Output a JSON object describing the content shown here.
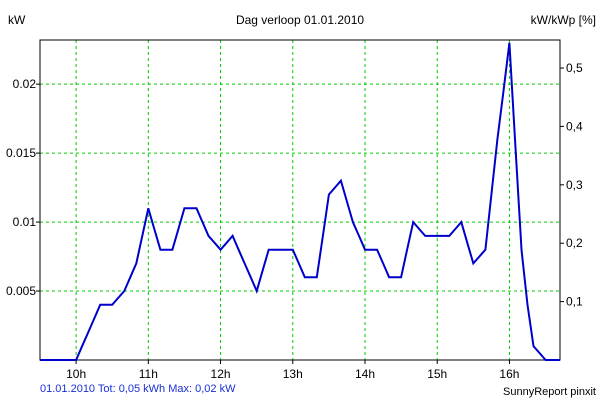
{
  "chart_data": {
    "type": "line",
    "title": "Dag  verloop 01.01.2010",
    "ylabel_left": "kW",
    "ylabel_right": "kW/kWp [%]",
    "x_ticks": [
      {
        "value": 10,
        "label": "10h"
      },
      {
        "value": 11,
        "label": "11h"
      },
      {
        "value": 12,
        "label": "12h"
      },
      {
        "value": 13,
        "label": "13h"
      },
      {
        "value": 14,
        "label": "14h"
      },
      {
        "value": 15,
        "label": "15h"
      },
      {
        "value": 16,
        "label": "16h"
      }
    ],
    "y_ticks_left": [
      {
        "value": 0.005,
        "label": "0.005"
      },
      {
        "value": 0.01,
        "label": "0.01"
      },
      {
        "value": 0.015,
        "label": "0.015"
      },
      {
        "value": 0.02,
        "label": "0.02"
      }
    ],
    "y_ticks_right": [
      {
        "value": 0.1,
        "label": "0,1"
      },
      {
        "value": 0.2,
        "label": "0,2"
      },
      {
        "value": 0.3,
        "label": "0,3"
      },
      {
        "value": 0.4,
        "label": "0,4"
      },
      {
        "value": 0.5,
        "label": "0,5"
      }
    ],
    "xlim": [
      9.5,
      16.7
    ],
    "ylim_left": [
      0,
      0.0232
    ],
    "ylim_right": [
      0,
      0.548
    ],
    "grid": true,
    "line_color": "#0000cc",
    "grid_color": "#00cc00",
    "series": [
      {
        "x": [
          9.5,
          10.0,
          10.083,
          10.167,
          10.25,
          10.333,
          10.417,
          10.5,
          10.583,
          10.667,
          10.75,
          10.833,
          10.917,
          11.0,
          11.083,
          11.167,
          11.25,
          11.333,
          11.417,
          11.5,
          11.583,
          11.667,
          11.75,
          11.833,
          11.917,
          12.0,
          12.083,
          12.167,
          12.25,
          12.333,
          12.417,
          12.5,
          12.583,
          12.667,
          12.75,
          12.833,
          12.917,
          13.0,
          13.083,
          13.167,
          13.25,
          13.333,
          13.417,
          13.5,
          13.583,
          13.667,
          13.75,
          13.833,
          13.917,
          14.0,
          14.083,
          14.167,
          14.25,
          14.333,
          14.417,
          14.5,
          14.583,
          14.667,
          14.75,
          14.833,
          14.917,
          15.0,
          15.083,
          15.167,
          15.25,
          15.333,
          15.417,
          15.5,
          15.583,
          15.667,
          15.75,
          15.833,
          15.917,
          16.0,
          16.083,
          16.167,
          16.25,
          16.333,
          16.417,
          16.5,
          16.583,
          16.7
        ],
        "values": [
          0,
          0,
          0.001,
          0.002,
          0.003,
          0.004,
          0.004,
          0.004,
          0.0045,
          0.005,
          0.006,
          0.007,
          0.009,
          0.011,
          0.0095,
          0.008,
          0.008,
          0.008,
          0.0095,
          0.011,
          0.011,
          0.011,
          0.01,
          0.009,
          0.0085,
          0.008,
          0.0085,
          0.009,
          0.008,
          0.007,
          0.006,
          0.005,
          0.0065,
          0.008,
          0.008,
          0.008,
          0.008,
          0.008,
          0.007,
          0.006,
          0.006,
          0.006,
          0.009,
          0.012,
          0.0125,
          0.013,
          0.0115,
          0.01,
          0.009,
          0.008,
          0.008,
          0.008,
          0.007,
          0.006,
          0.006,
          0.006,
          0.008,
          0.01,
          0.0095,
          0.009,
          0.009,
          0.009,
          0.009,
          0.009,
          0.0095,
          0.01,
          0.0085,
          0.007,
          0.0075,
          0.008,
          0.012,
          0.016,
          0.0195,
          0.023,
          0.0155,
          0.008,
          0.004,
          0.001,
          0.0005,
          0,
          0,
          0
        ]
      }
    ],
    "footer_left": "01.01.2010 Tot: 0,05 kWh Max: 0,02 kW",
    "footer_right": "SunnyReport pinxit"
  }
}
